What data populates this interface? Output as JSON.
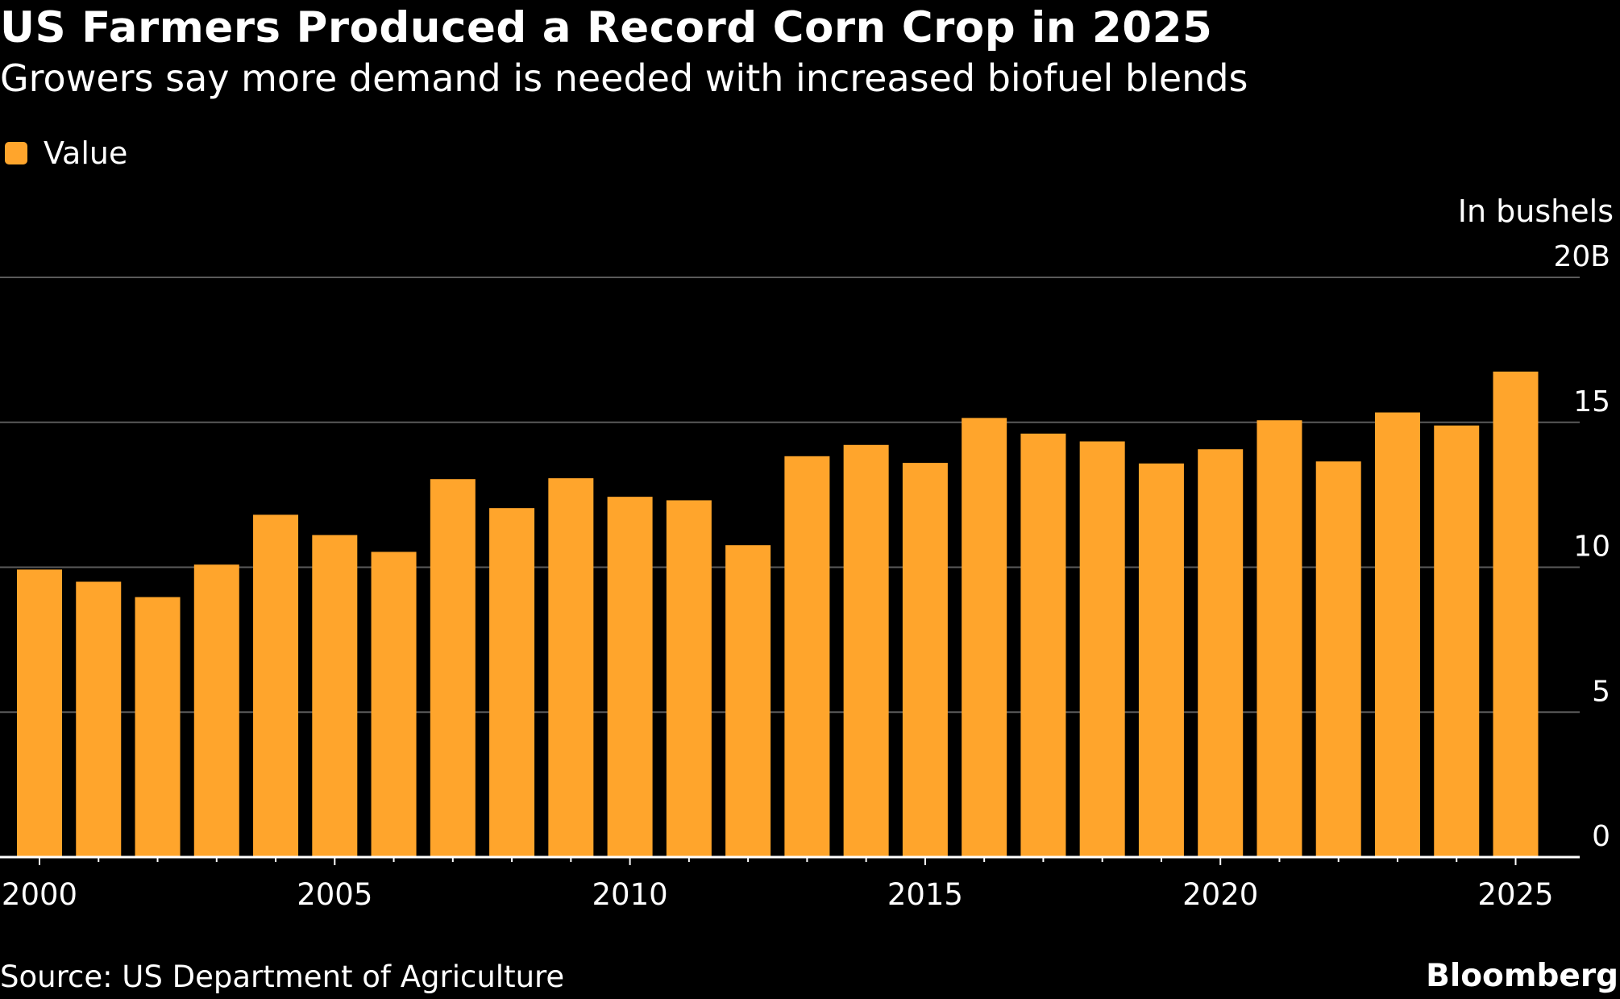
{
  "header": {
    "title": "US Farmers Produced a Record Corn Crop in 2025",
    "subtitle": "Growers say more demand is needed with increased biofuel blends"
  },
  "legend": {
    "label": "Value"
  },
  "footer": {
    "source": "Source: US Department of Agriculture",
    "brand": "Bloomberg"
  },
  "colors": {
    "background": "#000000",
    "bar": "#FFA52C",
    "grid": "#5a5a5a",
    "text": "#ffffff"
  },
  "chart_data": {
    "type": "bar",
    "title": "US Farmers Produced a Record Corn Crop in 2025",
    "subtitle": "Growers say more demand is needed with increased biofuel blends",
    "unit_label": "In bushels",
    "legend_position": "top-left",
    "grid": true,
    "ylim": [
      0,
      20
    ],
    "y_ticks": [
      0,
      5,
      10,
      15,
      20
    ],
    "y_tick_labels": [
      "0",
      "5",
      "10",
      "15",
      "20B"
    ],
    "x_tick_labels": [
      "2000",
      "2005",
      "2010",
      "2015",
      "2020",
      "2025"
    ],
    "categories": [
      "2000",
      "2001",
      "2002",
      "2003",
      "2004",
      "2005",
      "2006",
      "2007",
      "2008",
      "2009",
      "2010",
      "2011",
      "2012",
      "2013",
      "2014",
      "2015",
      "2016",
      "2017",
      "2018",
      "2019",
      "2020",
      "2021",
      "2022",
      "2023",
      "2024",
      "2025"
    ],
    "series": [
      {
        "name": "Value",
        "values": [
          9.92,
          9.5,
          8.97,
          10.09,
          11.81,
          11.11,
          10.53,
          13.04,
          12.04,
          13.07,
          12.43,
          12.31,
          10.76,
          13.83,
          14.22,
          13.6,
          15.15,
          14.61,
          14.34,
          13.58,
          14.07,
          15.07,
          13.65,
          15.34,
          14.89,
          16.75
        ]
      }
    ]
  }
}
